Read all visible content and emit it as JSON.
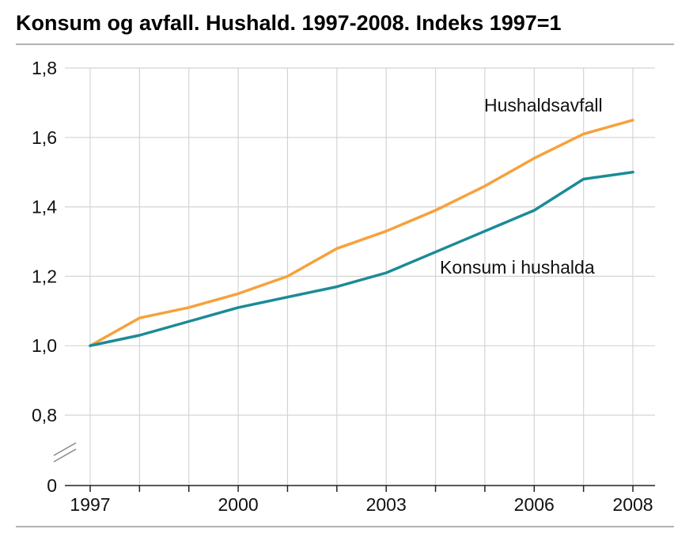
{
  "chart_data": {
    "type": "line",
    "title": "Konsum og avfall. Hushald. 1997-2008. Indeks 1997=1",
    "x": [
      1997,
      1998,
      1999,
      2000,
      2001,
      2002,
      2003,
      2004,
      2005,
      2006,
      2007,
      2008
    ],
    "x_tick_labels": [
      "1997",
      "2000",
      "2003",
      "2006",
      "2008"
    ],
    "x_tick_values": [
      1997,
      2000,
      2003,
      2006,
      2008
    ],
    "y_tick_labels": [
      "0",
      "0,8",
      "1,0",
      "1,2",
      "1,4",
      "1,6",
      "1,8"
    ],
    "y_tick_values": [
      0,
      0.8,
      1.0,
      1.2,
      1.4,
      1.6,
      1.8
    ],
    "ylim": [
      0,
      1.8
    ],
    "y_axis_break": true,
    "grid": true,
    "series": [
      {
        "name": "Hushaldsavfall",
        "color": "#f7a13b",
        "values": [
          1.0,
          1.08,
          1.11,
          1.15,
          1.2,
          1.28,
          1.33,
          1.39,
          1.46,
          1.54,
          1.61,
          1.65
        ]
      },
      {
        "name": "Konsum i hushalda",
        "color": "#1b8b97",
        "values": [
          1.0,
          1.03,
          1.07,
          1.11,
          1.14,
          1.17,
          1.21,
          1.27,
          1.33,
          1.39,
          1.48,
          1.5
        ]
      }
    ]
  }
}
